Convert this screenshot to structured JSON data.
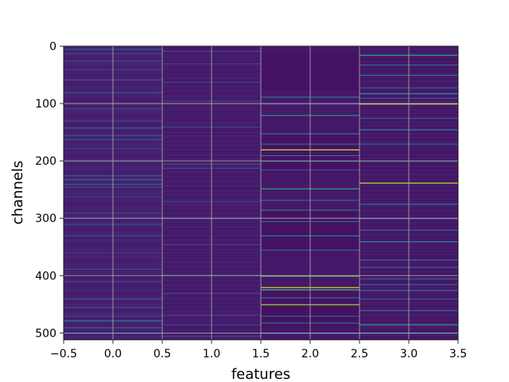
{
  "chart_data": {
    "type": "heatmap",
    "xlabel": "features",
    "ylabel": "channels",
    "xlim": [
      -0.5,
      3.5
    ],
    "ylim": [
      512,
      0
    ],
    "x_ticks": [
      "−0.5",
      "0.0",
      "0.5",
      "1.0",
      "1.5",
      "2.0",
      "2.5",
      "3.0",
      "3.5"
    ],
    "x_tick_values": [
      -0.5,
      0.0,
      0.5,
      1.0,
      1.5,
      2.0,
      2.5,
      3.0,
      3.5
    ],
    "y_ticks": [
      "0",
      "100",
      "200",
      "300",
      "400",
      "500"
    ],
    "y_tick_values": [
      0,
      100,
      200,
      300,
      400,
      500
    ],
    "grid": true,
    "colormap": "viridis",
    "columns": [
      {
        "feature": 0,
        "base_value": 0.08,
        "highlights": [
          {
            "channel": 5,
            "value": 0.3
          },
          {
            "channel": 12,
            "value": 0.25
          },
          {
            "channel": 25,
            "value": 0.22
          },
          {
            "channel": 40,
            "value": 0.2
          },
          {
            "channel": 58,
            "value": 0.24
          },
          {
            "channel": 80,
            "value": 0.3
          },
          {
            "channel": 108,
            "value": 0.25
          },
          {
            "channel": 130,
            "value": 0.22
          },
          {
            "channel": 142,
            "value": 0.28
          },
          {
            "channel": 155,
            "value": 0.25
          },
          {
            "channel": 162,
            "value": 0.3
          },
          {
            "channel": 178,
            "value": 0.22
          },
          {
            "channel": 200,
            "value": 0.25
          },
          {
            "channel": 225,
            "value": 0.3
          },
          {
            "channel": 232,
            "value": 0.4
          },
          {
            "channel": 240,
            "value": 0.32
          },
          {
            "channel": 245,
            "value": 0.25
          },
          {
            "channel": 262,
            "value": 0.2
          },
          {
            "channel": 290,
            "value": 0.25
          },
          {
            "channel": 310,
            "value": 0.22
          },
          {
            "channel": 330,
            "value": 0.24
          },
          {
            "channel": 360,
            "value": 0.2
          },
          {
            "channel": 388,
            "value": 0.25
          },
          {
            "channel": 410,
            "value": 0.22
          },
          {
            "channel": 440,
            "value": 0.28
          },
          {
            "channel": 455,
            "value": 0.25
          },
          {
            "channel": 470,
            "value": 0.22
          },
          {
            "channel": 478,
            "value": 0.4
          },
          {
            "channel": 490,
            "value": 0.3
          },
          {
            "channel": 500,
            "value": 0.25
          }
        ]
      },
      {
        "feature": 1,
        "base_value": 0.07,
        "highlights": [
          {
            "channel": 8,
            "value": 0.22
          },
          {
            "channel": 30,
            "value": 0.2
          },
          {
            "channel": 62,
            "value": 0.22
          },
          {
            "channel": 95,
            "value": 0.2
          },
          {
            "channel": 140,
            "value": 0.22
          },
          {
            "channel": 205,
            "value": 0.25
          },
          {
            "channel": 212,
            "value": 0.22
          },
          {
            "channel": 270,
            "value": 0.2
          },
          {
            "channel": 300,
            "value": 0.22
          },
          {
            "channel": 345,
            "value": 0.2
          },
          {
            "channel": 398,
            "value": 0.22
          },
          {
            "channel": 430,
            "value": 0.2
          },
          {
            "channel": 468,
            "value": 0.22
          },
          {
            "channel": 485,
            "value": 0.2
          },
          {
            "channel": 505,
            "value": 0.22
          }
        ]
      },
      {
        "feature": 2,
        "base_value": 0.05,
        "highlights": [
          {
            "channel": 88,
            "value": 0.4
          },
          {
            "channel": 100,
            "value": 0.25
          },
          {
            "channel": 120,
            "value": 0.55
          },
          {
            "channel": 152,
            "value": 0.4
          },
          {
            "channel": 170,
            "value": 0.32
          },
          {
            "channel": 180,
            "value": 0.95
          },
          {
            "channel": 190,
            "value": 0.35
          },
          {
            "channel": 200,
            "value": 0.3
          },
          {
            "channel": 215,
            "value": 0.28
          },
          {
            "channel": 248,
            "value": 0.6
          },
          {
            "channel": 268,
            "value": 0.3
          },
          {
            "channel": 285,
            "value": 0.4
          },
          {
            "channel": 305,
            "value": 0.35
          },
          {
            "channel": 330,
            "value": 0.45
          },
          {
            "channel": 355,
            "value": 0.3
          },
          {
            "channel": 400,
            "value": 0.8
          },
          {
            "channel": 420,
            "value": 0.9
          },
          {
            "channel": 424,
            "value": 0.7
          },
          {
            "channel": 438,
            "value": 0.35
          },
          {
            "channel": 450,
            "value": 0.85
          },
          {
            "channel": 470,
            "value": 0.3
          },
          {
            "channel": 482,
            "value": 0.35
          },
          {
            "channel": 500,
            "value": 0.4
          }
        ]
      },
      {
        "feature": 3,
        "base_value": 0.06,
        "highlights": [
          {
            "channel": 15,
            "value": 0.6
          },
          {
            "channel": 32,
            "value": 0.35
          },
          {
            "channel": 50,
            "value": 0.4
          },
          {
            "channel": 72,
            "value": 0.3
          },
          {
            "channel": 82,
            "value": 0.5
          },
          {
            "channel": 90,
            "value": 0.3
          },
          {
            "channel": 100,
            "value": 0.95
          },
          {
            "channel": 125,
            "value": 0.3
          },
          {
            "channel": 145,
            "value": 0.45
          },
          {
            "channel": 170,
            "value": 0.35
          },
          {
            "channel": 200,
            "value": 0.3
          },
          {
            "channel": 238,
            "value": 0.9
          },
          {
            "channel": 275,
            "value": 0.4
          },
          {
            "channel": 300,
            "value": 0.3
          },
          {
            "channel": 320,
            "value": 0.35
          },
          {
            "channel": 340,
            "value": 0.45
          },
          {
            "channel": 372,
            "value": 0.4
          },
          {
            "channel": 385,
            "value": 0.3
          },
          {
            "channel": 405,
            "value": 0.35
          },
          {
            "channel": 415,
            "value": 0.3
          },
          {
            "channel": 425,
            "value": 0.4
          },
          {
            "channel": 440,
            "value": 0.3
          },
          {
            "channel": 460,
            "value": 0.35
          },
          {
            "channel": 485,
            "value": 0.6
          },
          {
            "channel": 500,
            "value": 0.3
          }
        ]
      }
    ]
  }
}
